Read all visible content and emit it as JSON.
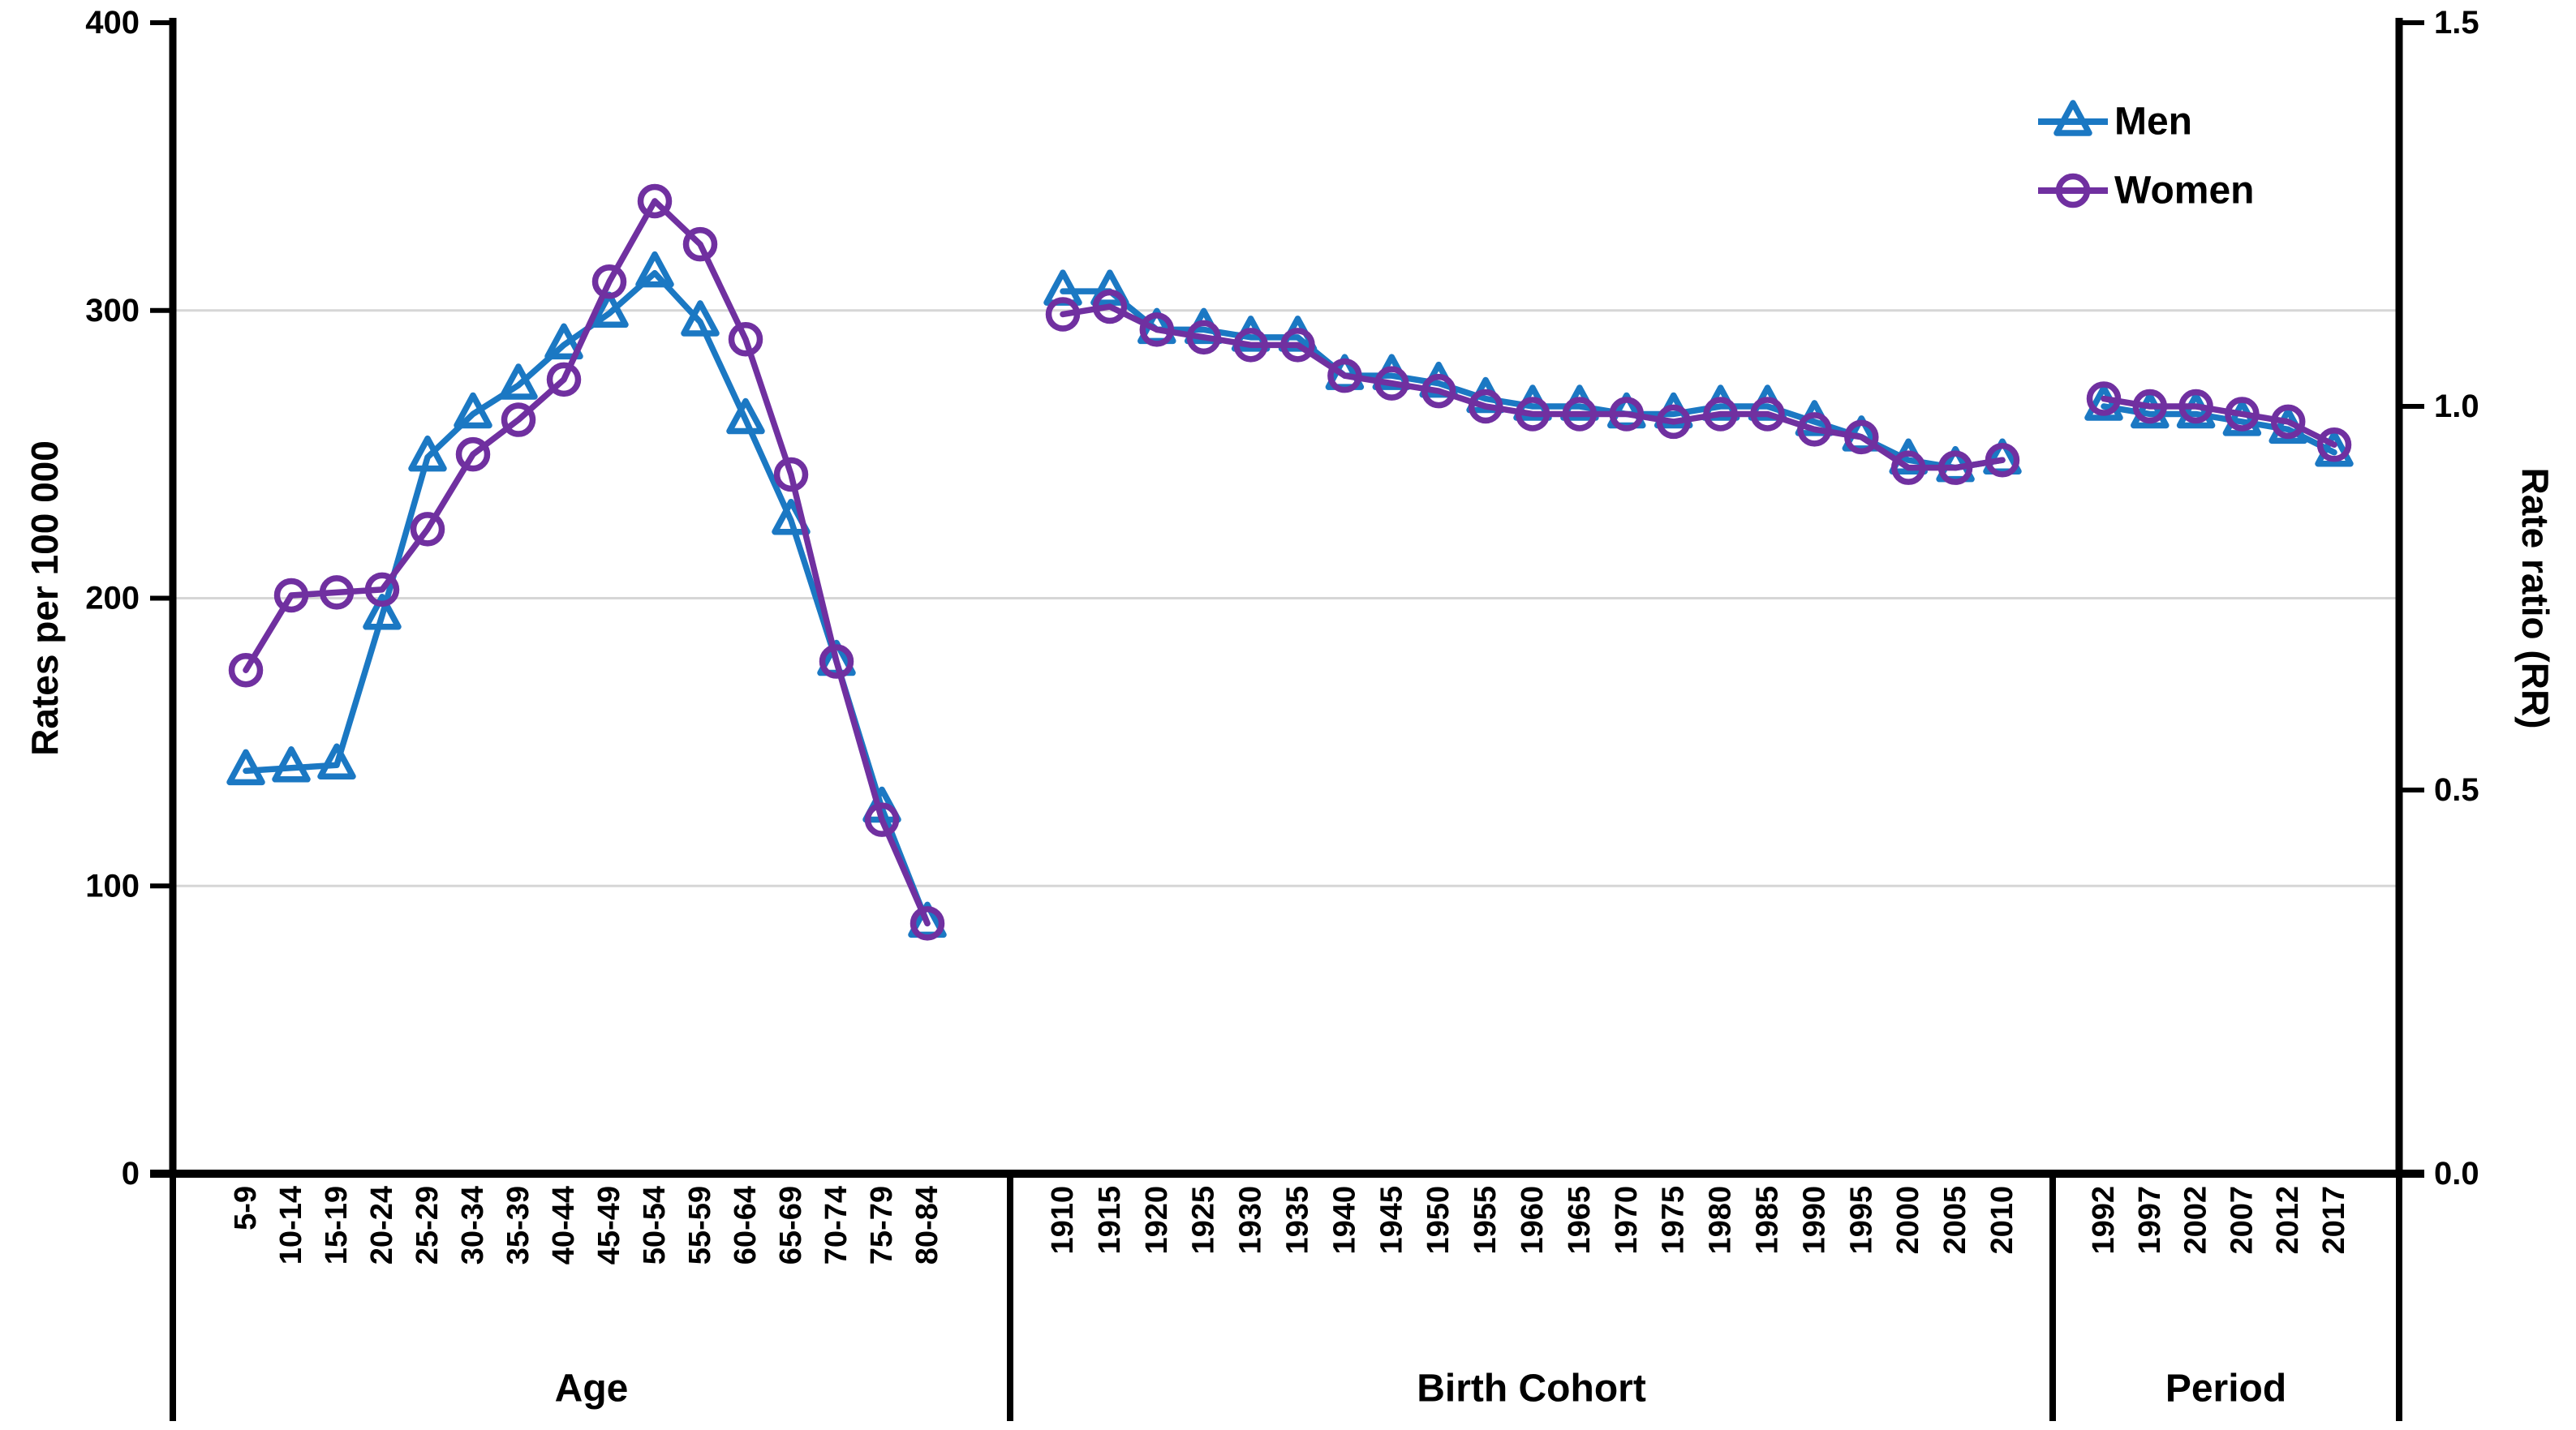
{
  "chart_data": {
    "type": "line",
    "title": "",
    "colors": {
      "men": "#1b78c3",
      "women": "#7030a0",
      "grid": "#d6d6d6",
      "axis": "#000000",
      "background": "#ffffff"
    },
    "left_axis": {
      "label": "Rates per 100 000",
      "tick_labels": [
        "400",
        "300",
        "200",
        "100",
        "0"
      ],
      "tick_values": [
        400,
        300,
        200,
        100,
        0
      ],
      "range": [
        0,
        400
      ],
      "gridline_values": [
        300,
        200,
        100
      ]
    },
    "right_axis": {
      "label": "Rate ratio (RR)",
      "tick_labels": [
        "1.5",
        "1.0",
        "0.5",
        "0.0"
      ],
      "tick_values": [
        1.5,
        1.0,
        0.5,
        0.0
      ],
      "range": [
        0,
        1.5
      ]
    },
    "legend": [
      {
        "label": "Men",
        "marker": "triangle",
        "color": "#1b78c3"
      },
      {
        "label": "Women",
        "marker": "circle",
        "color": "#7030a0"
      }
    ],
    "panels": [
      {
        "name": "Age",
        "value_axis": "left",
        "categories": [
          "5-9",
          "10-14",
          "15-19",
          "20-24",
          "25-29",
          "30-34",
          "35-39",
          "40-44",
          "45-49",
          "50-54",
          "55-59",
          "60-64",
          "65-69",
          "70-74",
          "75-79",
          "80-84"
        ],
        "series": [
          {
            "name": "Men",
            "values": [
              140,
              141,
              142,
              194,
              249,
              264,
              274,
              288,
              299,
              313,
              296,
              262,
              227,
              178,
              127,
              87
            ]
          },
          {
            "name": "Women",
            "values": [
              175,
              201,
              202,
              203,
              224,
              250,
              262,
              276,
              310,
              338,
              323,
              290,
              243,
              178,
              123,
              87
            ]
          }
        ]
      },
      {
        "name": "Birth Cohort",
        "value_axis": "right",
        "categories": [
          "1910",
          "1915",
          "1920",
          "1925",
          "1930",
          "1935",
          "1940",
          "1945",
          "1950",
          "1955",
          "1960",
          "1965",
          "1970",
          "1975",
          "1980",
          "1985",
          "1990",
          "1995",
          "2000",
          "2005",
          "2010"
        ],
        "series": [
          {
            "name": "Men",
            "values": [
              1.15,
              1.15,
              1.1,
              1.1,
              1.09,
              1.09,
              1.04,
              1.04,
              1.03,
              1.01,
              1.0,
              1.0,
              0.99,
              0.99,
              1.0,
              1.0,
              0.98,
              0.96,
              0.93,
              0.92,
              0.93
            ]
          },
          {
            "name": "Women",
            "values": [
              1.12,
              1.13,
              1.1,
              1.09,
              1.08,
              1.08,
              1.04,
              1.03,
              1.02,
              1.0,
              0.99,
              0.99,
              0.99,
              0.98,
              0.99,
              0.99,
              0.97,
              0.96,
              0.92,
              0.92,
              0.93
            ]
          }
        ]
      },
      {
        "name": "Period",
        "value_axis": "right",
        "categories": [
          "1992",
          "1997",
          "2002",
          "2007",
          "2012",
          "2017"
        ],
        "series": [
          {
            "name": "Men",
            "values": [
              1.0,
              0.99,
              0.99,
              0.98,
              0.97,
              0.94
            ]
          },
          {
            "name": "Women",
            "values": [
              1.01,
              1.0,
              1.0,
              0.99,
              0.98,
              0.95
            ]
          }
        ]
      }
    ]
  }
}
